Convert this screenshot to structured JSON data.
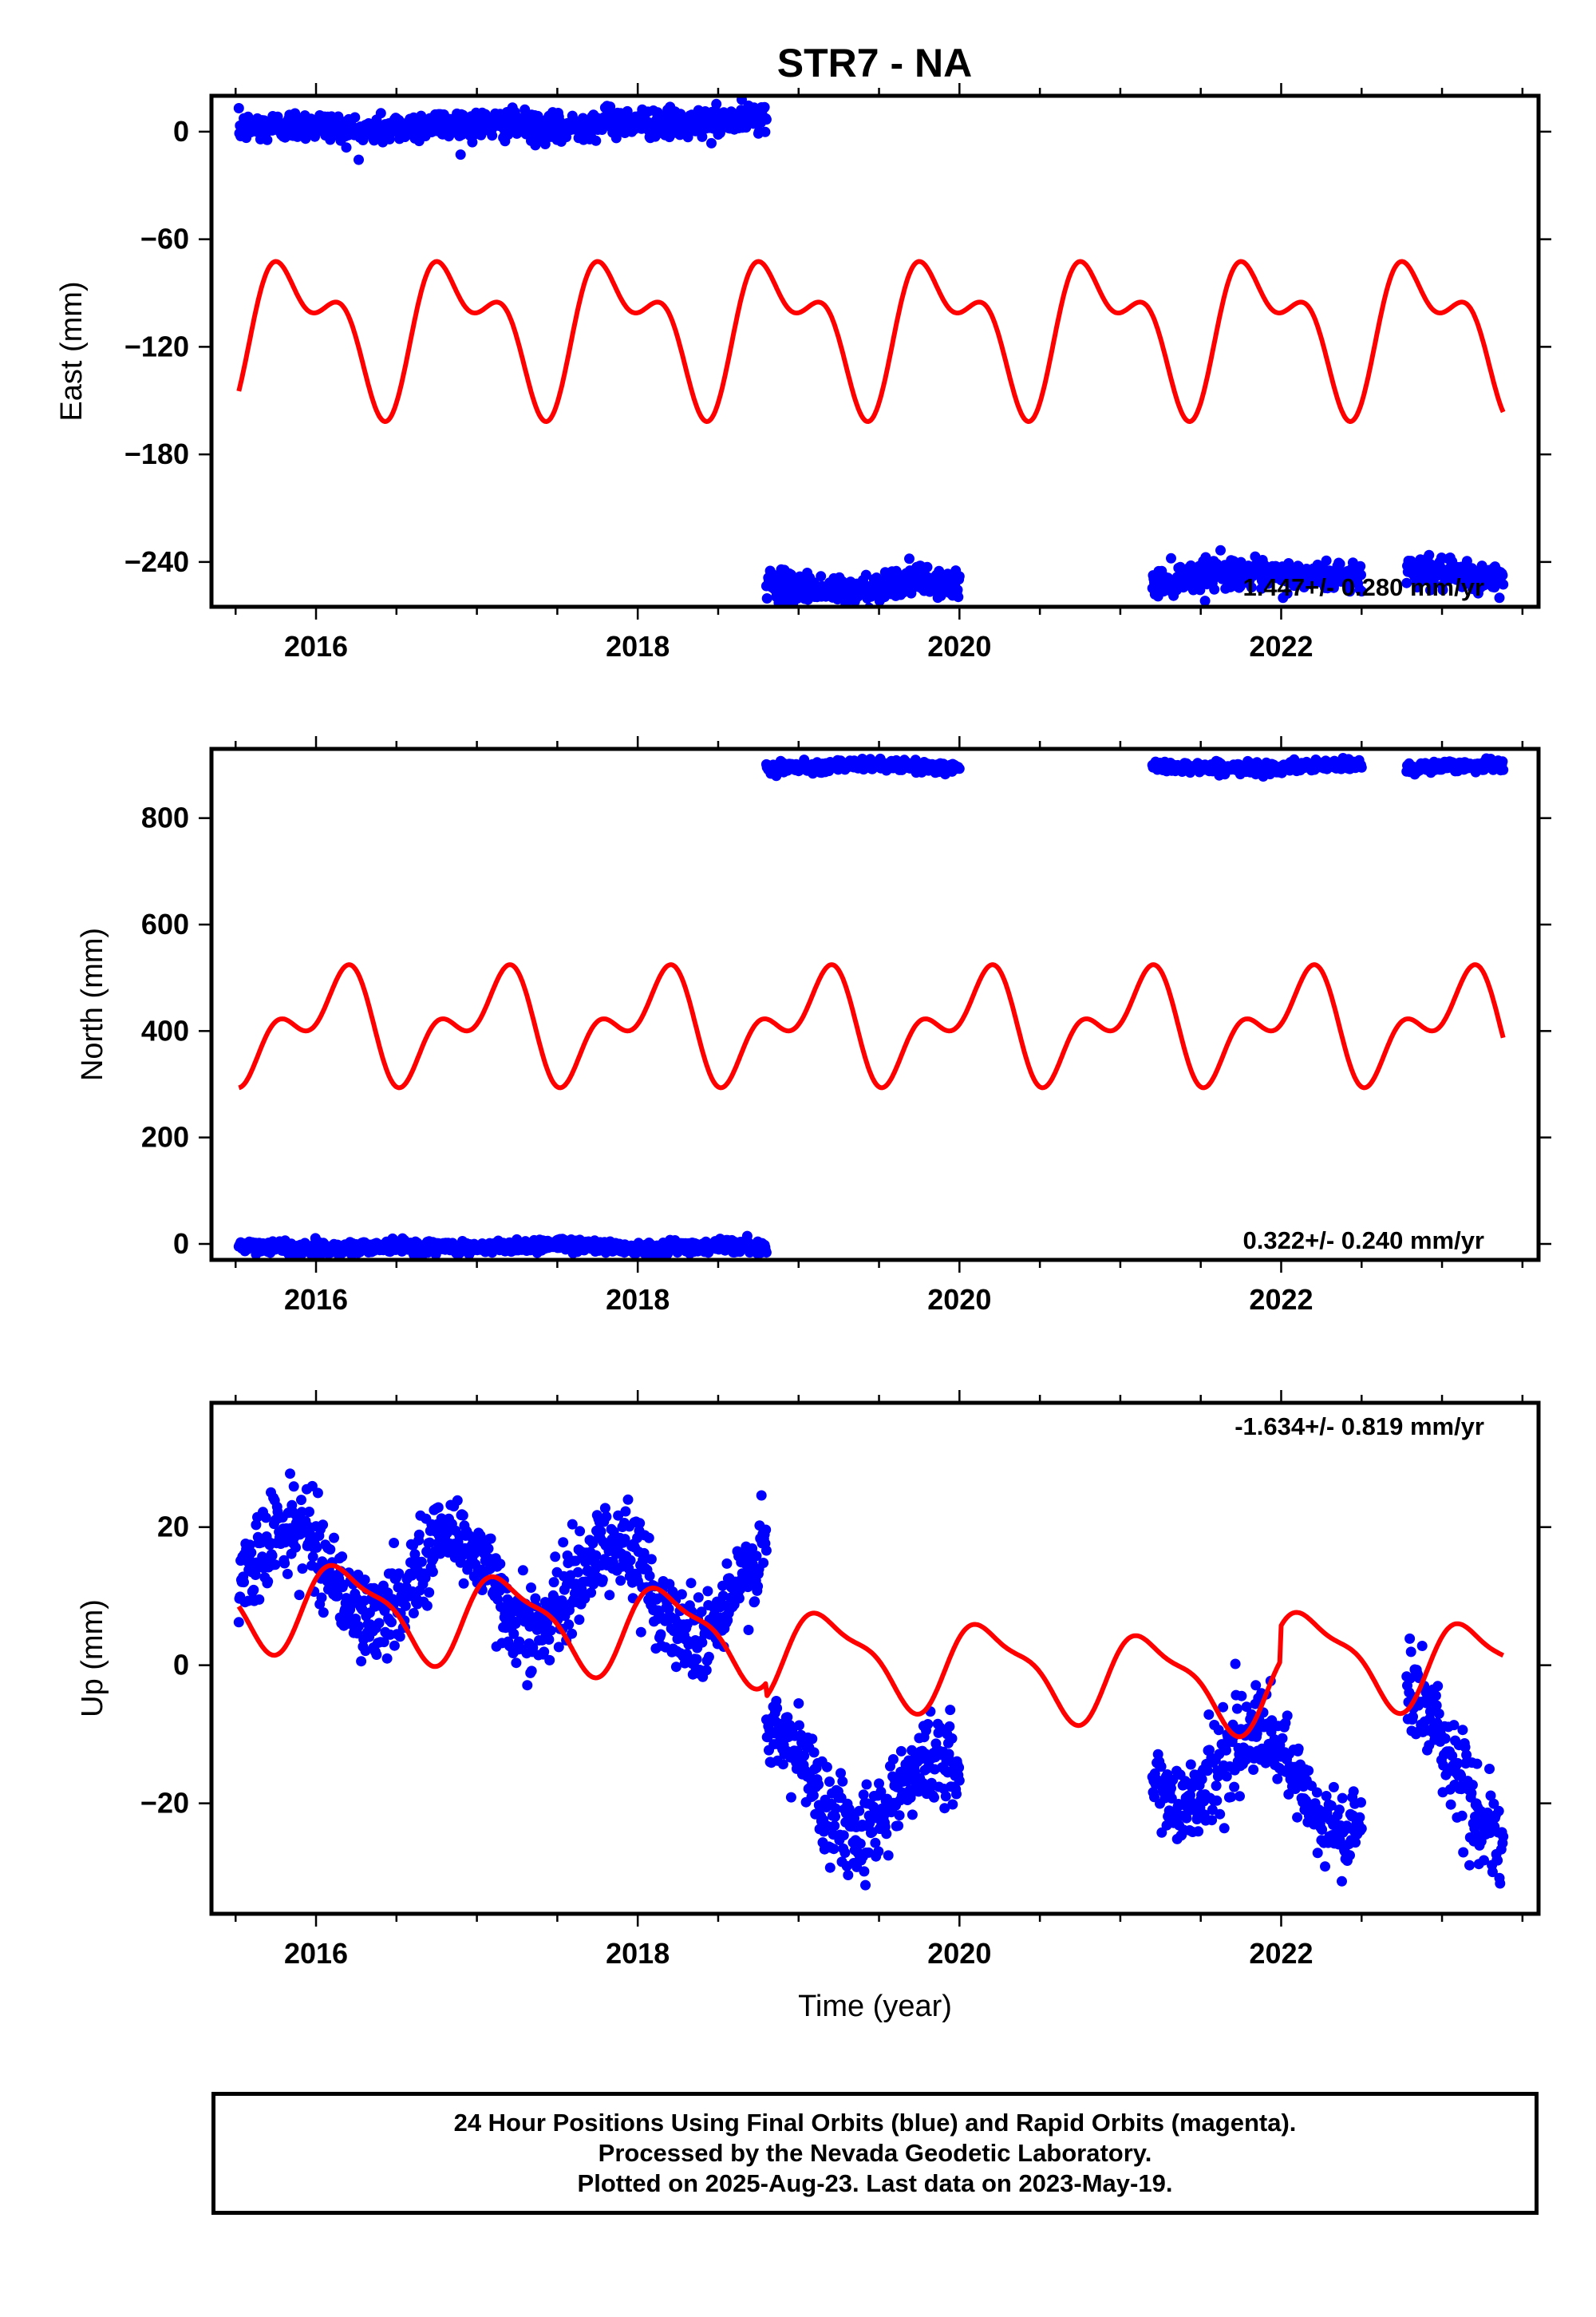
{
  "title": "STR7 - NA",
  "colors": {
    "data": "#0000ff",
    "model": "#ff0000",
    "frame": "#000000"
  },
  "chart_data": [
    {
      "type": "scatter",
      "panel": "east",
      "ylabel": "East (mm)",
      "xlabel": "",
      "xlim": [
        2015.35,
        2023.6
      ],
      "ylim": [
        -265,
        20
      ],
      "yticks": [
        0,
        -60,
        -120,
        -180,
        -240
      ],
      "xticks": [
        2016,
        2018,
        2020,
        2022
      ],
      "rate_text": "1.447+/- 0.280 mm/yr",
      "series": [
        {
          "kind": "points",
          "x_range": [
            2015.52,
            2018.8
          ],
          "trend_points": [
            [
              2015.52,
              2
            ],
            [
              2016.0,
              4
            ],
            [
              2016.3,
              0
            ],
            [
              2016.7,
              4
            ],
            [
              2017.2,
              4
            ],
            [
              2017.5,
              1
            ],
            [
              2017.8,
              6
            ],
            [
              2018.3,
              4
            ],
            [
              2018.6,
              6
            ],
            [
              2018.8,
              9
            ]
          ],
          "spread": 4
        },
        {
          "kind": "points",
          "x_range": [
            2018.8,
            2020.0
          ],
          "trend_points": [
            [
              2018.8,
              -252
            ],
            [
              2019.3,
              -257
            ],
            [
              2019.7,
              -250
            ],
            [
              2020.0,
              -253
            ]
          ],
          "spread": 4
        },
        {
          "kind": "points",
          "x_range": [
            2021.2,
            2022.5
          ],
          "trend_points": [
            [
              2021.2,
              -252
            ],
            [
              2021.6,
              -245
            ],
            [
              2022.0,
              -248
            ],
            [
              2022.5,
              -248
            ]
          ],
          "spread": 4
        },
        {
          "kind": "points",
          "x_range": [
            2022.78,
            2023.38
          ],
          "trend_points": [
            [
              2022.78,
              -244
            ],
            [
              2023.1,
              -248
            ],
            [
              2023.38,
              -250
            ]
          ],
          "spread": 4
        },
        {
          "kind": "line",
          "model": {
            "base": -110,
            "trend": 0,
            "t0": 2019.4,
            "offsets": [],
            "harmonics": [
              {
                "amp_cos": 25.1,
                "amp_sin": -21.5,
                "period": 1.0
              },
              {
                "amp_cos": -16.1,
                "amp_sin": 12.4,
                "period": 0.5
              }
            ]
          }
        }
      ]
    },
    {
      "type": "scatter",
      "panel": "north",
      "ylabel": "North (mm)",
      "xlabel": "",
      "xlim": [
        2015.35,
        2023.6
      ],
      "ylim": [
        -30,
        930
      ],
      "yticks": [
        0,
        200,
        400,
        600,
        800
      ],
      "xticks": [
        2016,
        2018,
        2020,
        2022
      ],
      "rate_text": "0.322+/- 0.240 mm/yr",
      "series": [
        {
          "kind": "points",
          "x_range": [
            2015.52,
            2018.8
          ],
          "trend_points": [
            [
              2015.52,
              -2
            ],
            [
              2016.0,
              -10
            ],
            [
              2016.5,
              -3
            ],
            [
              2017.0,
              -8
            ],
            [
              2017.5,
              0
            ],
            [
              2018.0,
              -8
            ],
            [
              2018.5,
              -2
            ],
            [
              2018.8,
              -6
            ]
          ],
          "spread": 6
        },
        {
          "kind": "points",
          "x_range": [
            2018.8,
            2020.0
          ],
          "trend_points": [
            [
              2018.8,
              895
            ],
            [
              2019.5,
              900
            ],
            [
              2020.0,
              893
            ]
          ],
          "spread": 5
        },
        {
          "kind": "points",
          "x_range": [
            2021.2,
            2022.5
          ],
          "trend_points": [
            [
              2021.2,
              897
            ],
            [
              2021.9,
              893
            ],
            [
              2022.5,
              902
            ]
          ],
          "spread": 5
        },
        {
          "kind": "points",
          "x_range": [
            2022.78,
            2023.38
          ],
          "trend_points": [
            [
              2022.78,
              895
            ],
            [
              2023.38,
              900
            ]
          ],
          "spread": 5
        },
        {
          "kind": "line",
          "model": {
            "base": 410,
            "trend": 0,
            "t0": 2019.4,
            "offsets": [],
            "harmonics": [
              {
                "amp_cos": 59,
                "amp_sin": 48,
                "period": 1.0
              },
              {
                "amp_cos": -56,
                "amp_sin": 9,
                "period": 0.5
              }
            ]
          }
        }
      ]
    },
    {
      "type": "scatter",
      "panel": "up",
      "ylabel": "Up (mm)",
      "xlabel": "Time (year)",
      "xlim": [
        2015.35,
        2023.6
      ],
      "ylim": [
        -36,
        38
      ],
      "yticks": [
        20,
        0,
        -20
      ],
      "xticks": [
        2016,
        2018,
        2020,
        2022
      ],
      "rate_text": "-1.634+/- 0.819 mm/yr",
      "series": [
        {
          "kind": "points",
          "x_range": [
            2015.52,
            2018.8
          ],
          "seasonal_amp": 6.5,
          "seasonal_phase": 2015.85,
          "trend_points": [
            [
              2015.52,
              14
            ],
            [
              2018.8,
              10
            ]
          ],
          "spread": 3.2
        },
        {
          "kind": "points",
          "x_range": [
            2018.8,
            2020.0
          ],
          "seasonal_amp": 6.0,
          "seasonal_phase": 2015.85,
          "trend_points": [
            [
              2018.8,
              -16
            ],
            [
              2020.0,
              -20
            ]
          ],
          "spread": 3.2
        },
        {
          "kind": "points",
          "x_range": [
            2021.2,
            2022.5
          ],
          "seasonal_amp": 6.0,
          "seasonal_phase": 2015.85,
          "trend_points": [
            [
              2021.2,
              -13
            ],
            [
              2022.5,
              -19
            ]
          ],
          "spread": 3.2
        },
        {
          "kind": "points",
          "x_range": [
            2022.78,
            2023.38
          ],
          "seasonal_amp": 5.0,
          "seasonal_phase": 2015.85,
          "trend_points": [
            [
              2022.78,
              -8
            ],
            [
              2023.38,
              -22
            ]
          ],
          "spread": 3.2
        },
        {
          "kind": "line",
          "model": {
            "base": 3,
            "trend": -1.634,
            "t0": 2019.4,
            "offsets": [
              {
                "t": 2018.8,
                "dy": -2
              },
              {
                "t": 2022.0,
                "dy": 5
              }
            ],
            "harmonics": [
              {
                "amp_cos": 2.1,
                "amp_sin": 5.6,
                "period": 1.0
              },
              {
                "amp_cos": 1.9,
                "amp_sin": 0.5,
                "period": 0.5
              }
            ]
          }
        }
      ]
    }
  ],
  "caption": {
    "lines": [
      "24 Hour Positions Using Final Orbits (blue) and Rapid Orbits (magenta).",
      "Processed by the Nevada Geodetic Laboratory.",
      "Plotted on 2025-Aug-23. Last data on 2023-May-19."
    ]
  }
}
